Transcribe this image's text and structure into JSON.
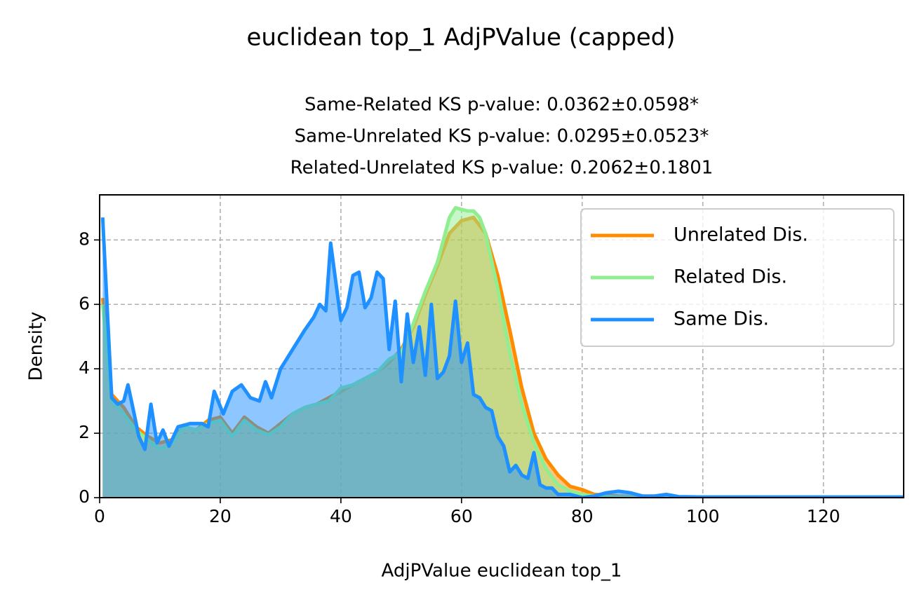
{
  "chart_data": {
    "type": "area",
    "title": "euclidean top_1 AdjPValue (capped)",
    "subtitle": [
      "Same-Related KS p-value: 0.0362±0.0598*",
      "Same-Unrelated KS p-value: 0.0295±0.0523*",
      "Related-Unrelated KS p-value: 0.2062±0.1801"
    ],
    "x_label": "AdjPValue euclidean top_1",
    "y_label": "Density",
    "xlim": [
      0,
      133.3
    ],
    "ylim": [
      0,
      9.4
    ],
    "xticks": [
      0,
      20,
      40,
      60,
      80,
      100,
      120
    ],
    "yticks": [
      0,
      2,
      4,
      6,
      8
    ],
    "grid": true,
    "legend": "upper right",
    "series": [
      {
        "name": "Unrelated Dis.",
        "color": "#ff8c00",
        "x": [
          0.5,
          2,
          4,
          6,
          8,
          10,
          12,
          14,
          16,
          18,
          20,
          22,
          24,
          26,
          28,
          30,
          32,
          34,
          36,
          38,
          40,
          42,
          44,
          46,
          48,
          50,
          52,
          54,
          56,
          58,
          60,
          62,
          64,
          66,
          68,
          70,
          72,
          74,
          76,
          78,
          80,
          82,
          86,
          90,
          133.3
        ],
        "values": [
          6.2,
          3.2,
          2.8,
          2.2,
          1.9,
          1.7,
          1.8,
          2.2,
          2.1,
          2.4,
          2.5,
          2.0,
          2.5,
          2.2,
          2.0,
          2.3,
          2.6,
          2.8,
          2.9,
          3.1,
          3.3,
          3.5,
          3.7,
          3.9,
          4.2,
          4.6,
          5.3,
          6.3,
          7.2,
          8.2,
          8.6,
          8.7,
          8.2,
          6.9,
          5.2,
          3.4,
          2.0,
          1.2,
          0.7,
          0.35,
          0.25,
          0.1,
          0.05,
          0.02,
          0.01
        ]
      },
      {
        "name": "Related Dis.",
        "color": "#90ee90",
        "x": [
          0.5,
          2,
          4,
          6,
          8,
          10,
          12,
          14,
          16,
          18,
          20,
          22,
          24,
          26,
          28,
          30,
          32,
          34,
          36,
          38,
          40,
          42,
          44,
          46,
          48,
          50,
          52,
          54,
          56,
          58,
          59,
          61,
          62,
          63,
          64,
          66,
          68,
          70,
          72,
          74,
          76,
          78,
          80,
          82,
          86,
          90,
          133.3
        ],
        "values": [
          6.0,
          3.0,
          2.6,
          2.1,
          1.8,
          1.5,
          1.7,
          2.2,
          2.1,
          2.3,
          2.4,
          1.9,
          2.4,
          2.1,
          1.95,
          2.2,
          2.6,
          2.8,
          2.9,
          3.0,
          3.4,
          3.5,
          3.7,
          3.9,
          4.3,
          4.5,
          5.4,
          6.4,
          7.3,
          8.7,
          9.0,
          8.9,
          8.9,
          8.7,
          8.2,
          6.5,
          4.5,
          2.9,
          1.7,
          0.9,
          0.4,
          0.2,
          0.1,
          0.05,
          0.02,
          0.02,
          0.01
        ]
      },
      {
        "name": "Same Dis.",
        "color": "#1e90ff",
        "x": [
          0.5,
          2,
          3,
          4,
          4.7,
          5.5,
          6.5,
          7.5,
          8.5,
          9.5,
          10.5,
          11.5,
          13,
          15,
          17,
          18,
          19,
          20.5,
          22,
          23.5,
          25,
          26.5,
          27.5,
          28.5,
          30,
          32,
          34,
          35.5,
          36.5,
          37.5,
          38.3,
          40,
          41,
          42,
          43,
          44,
          45,
          46,
          47,
          48,
          49,
          50,
          51,
          52,
          53,
          54,
          55,
          56,
          57,
          58,
          59,
          60,
          61,
          62,
          63,
          64,
          65,
          66,
          67,
          68,
          69,
          70,
          71,
          72,
          73,
          74,
          75,
          76,
          78,
          80,
          82,
          84,
          86,
          88,
          89,
          90,
          92,
          94,
          96,
          100,
          133.3
        ],
        "values": [
          8.7,
          3.1,
          2.9,
          3.0,
          3.5,
          2.8,
          1.9,
          1.5,
          2.9,
          1.7,
          2.1,
          1.6,
          2.2,
          2.3,
          2.3,
          2.2,
          3.3,
          2.6,
          3.3,
          3.5,
          3.1,
          3.0,
          3.6,
          3.1,
          4.0,
          4.6,
          5.2,
          5.6,
          6.0,
          5.8,
          7.9,
          5.5,
          5.9,
          6.9,
          7.0,
          5.9,
          6.2,
          7.0,
          6.8,
          4.6,
          6.1,
          3.6,
          5.7,
          4.2,
          5.3,
          3.8,
          6.0,
          3.7,
          3.9,
          4.4,
          6.1,
          4.2,
          4.8,
          3.2,
          3.1,
          2.8,
          2.7,
          1.9,
          1.6,
          0.8,
          1.0,
          0.7,
          0.6,
          1.4,
          0.4,
          0.3,
          0.3,
          0.1,
          0.1,
          0.0,
          0.05,
          0.15,
          0.2,
          0.15,
          0.1,
          0.05,
          0.05,
          0.1,
          0.03,
          0.02,
          0.02
        ]
      }
    ]
  }
}
